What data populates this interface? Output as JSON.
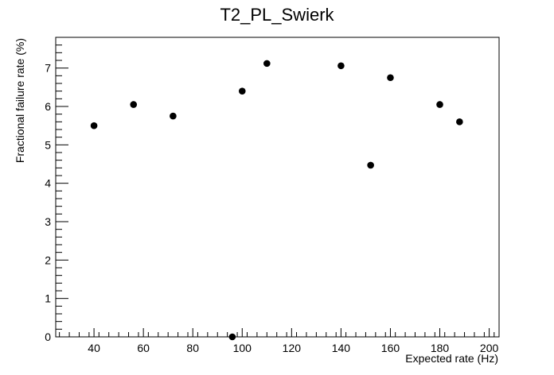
{
  "chart_data": {
    "type": "scatter",
    "title": "T2_PL_Swierk",
    "xlabel": "Expected rate (Hz)",
    "ylabel": "Fractional failure rate (%)",
    "xlim": [
      24.5,
      204
    ],
    "ylim": [
      0,
      7.8
    ],
    "xticks": [
      40,
      60,
      80,
      100,
      120,
      140,
      160,
      180,
      200
    ],
    "yticks": [
      0,
      1,
      2,
      3,
      4,
      5,
      6,
      7
    ],
    "grid": false,
    "marker_color": "#000000",
    "points": [
      {
        "x": 40,
        "y": 5.5
      },
      {
        "x": 56,
        "y": 6.05
      },
      {
        "x": 72,
        "y": 5.75
      },
      {
        "x": 96,
        "y": 0.0
      },
      {
        "x": 100,
        "y": 6.4
      },
      {
        "x": 110,
        "y": 7.12
      },
      {
        "x": 140,
        "y": 7.06
      },
      {
        "x": 152,
        "y": 4.47
      },
      {
        "x": 160,
        "y": 6.75
      },
      {
        "x": 180,
        "y": 6.05
      },
      {
        "x": 188,
        "y": 5.6
      }
    ]
  }
}
